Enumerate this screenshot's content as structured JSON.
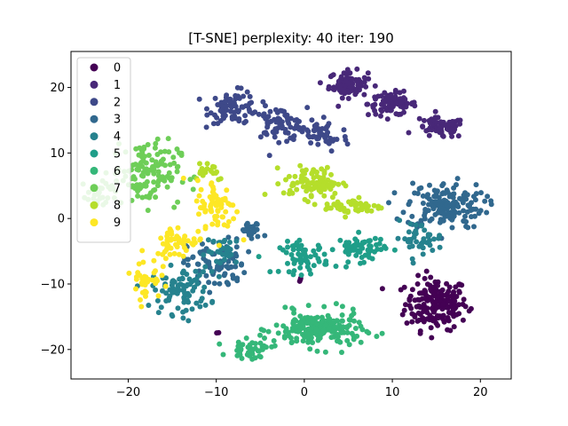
{
  "chart_data": {
    "type": "scatter",
    "title": "[T-SNE] perplexity: 40 iter: 190",
    "xlabel": "",
    "ylabel": "",
    "xlim": [
      -26.5,
      23.5
    ],
    "ylim": [
      -24.5,
      25.5
    ],
    "xticks": [
      -20,
      -10,
      0,
      10,
      20
    ],
    "yticks": [
      -20,
      -10,
      0,
      10,
      20
    ],
    "grid": false,
    "legend": {
      "placement": "top-left",
      "entries": [
        "0",
        "1",
        "2",
        "3",
        "4",
        "5",
        "6",
        "7",
        "8",
        "9"
      ]
    },
    "colors": [
      "#440154",
      "#482878",
      "#3e4989",
      "#31688e",
      "#26828e",
      "#1f9e89",
      "#35b779",
      "#6ece58",
      "#b5de2b",
      "#fde725"
    ],
    "series": [
      {
        "name": "0",
        "clusters": [
          {
            "center": [
              15,
              -13
            ],
            "spread": [
              3.2,
              3.6
            ],
            "count": 190
          },
          {
            "center": [
              -9.8,
              -17.5
            ],
            "spread": [
              0.2,
              0.2
            ],
            "count": 2
          },
          {
            "center": [
              -0.5,
              -9.5
            ],
            "spread": [
              0.2,
              0.3
            ],
            "count": 3
          }
        ]
      },
      {
        "name": "1",
        "clusters": [
          {
            "center": [
              5,
              20.5
            ],
            "spread": [
              2,
              1.8
            ],
            "count": 90
          },
          {
            "center": [
              10,
              17.5
            ],
            "spread": [
              2.5,
              1.6
            ],
            "count": 80
          },
          {
            "center": [
              15.5,
              13.8
            ],
            "spread": [
              2.5,
              1.4
            ],
            "count": 70
          }
        ]
      },
      {
        "name": "2",
        "clusters": [
          {
            "center": [
              -8,
              17
            ],
            "spread": [
              2.5,
              2.2
            ],
            "count": 80
          },
          {
            "center": [
              -3,
              14.5
            ],
            "spread": [
              3,
              2.2
            ],
            "count": 70
          },
          {
            "center": [
              2,
              12.5
            ],
            "spread": [
              2.8,
              2.2
            ],
            "count": 50
          }
        ]
      },
      {
        "name": "3",
        "clusters": [
          {
            "center": [
              16,
              2
            ],
            "spread": [
              4,
              3.2
            ],
            "count": 160
          },
          {
            "center": [
              -10,
              -7
            ],
            "spread": [
              3,
              3.5
            ],
            "count": 80
          },
          {
            "center": [
              -6,
              -2
            ],
            "spread": [
              1.2,
              1.2
            ],
            "count": 25
          }
        ]
      },
      {
        "name": "4",
        "clusters": [
          {
            "center": [
              -14,
              -11
            ],
            "spread": [
              3,
              3.2
            ],
            "count": 90
          },
          {
            "center": [
              13,
              -3
            ],
            "spread": [
              2.5,
              2.2
            ],
            "count": 40
          },
          {
            "center": [
              -9,
              -5
            ],
            "spread": [
              2,
              2
            ],
            "count": 30
          }
        ]
      },
      {
        "name": "5",
        "clusters": [
          {
            "center": [
              0,
              -6
            ],
            "spread": [
              2.5,
              2.2
            ],
            "count": 60
          },
          {
            "center": [
              6.5,
              -4.5
            ],
            "spread": [
              2.5,
              1.8
            ],
            "count": 60
          }
        ]
      },
      {
        "name": "6",
        "clusters": [
          {
            "center": [
              1.5,
              -17
            ],
            "spread": [
              4.5,
              2.5
            ],
            "count": 200
          },
          {
            "center": [
              -6,
              -20
            ],
            "spread": [
              2.2,
              1.2
            ],
            "count": 40
          }
        ]
      },
      {
        "name": "7",
        "clusters": [
          {
            "center": [
              -18,
              7
            ],
            "spread": [
              3.5,
              4.5
            ],
            "count": 130
          },
          {
            "center": [
              -23,
              3.5
            ],
            "spread": [
              1.5,
              2
            ],
            "count": 25
          }
        ]
      },
      {
        "name": "8",
        "clusters": [
          {
            "center": [
              1,
              5.5
            ],
            "spread": [
              3,
              2.2
            ],
            "count": 90
          },
          {
            "center": [
              5.5,
              1.8
            ],
            "spread": [
              3,
              1.2
            ],
            "count": 50
          },
          {
            "center": [
              -11,
              7.5
            ],
            "spread": [
              2,
              1.5
            ],
            "count": 20
          }
        ]
      },
      {
        "name": "9",
        "clusters": [
          {
            "center": [
              -10,
              1.5
            ],
            "spread": [
              2,
              4
            ],
            "count": 70
          },
          {
            "center": [
              -14.5,
              -3.5
            ],
            "spread": [
              2.2,
              2.2
            ],
            "count": 50
          },
          {
            "center": [
              -18,
              -9
            ],
            "spread": [
              1.5,
              3
            ],
            "count": 40
          }
        ]
      }
    ]
  }
}
